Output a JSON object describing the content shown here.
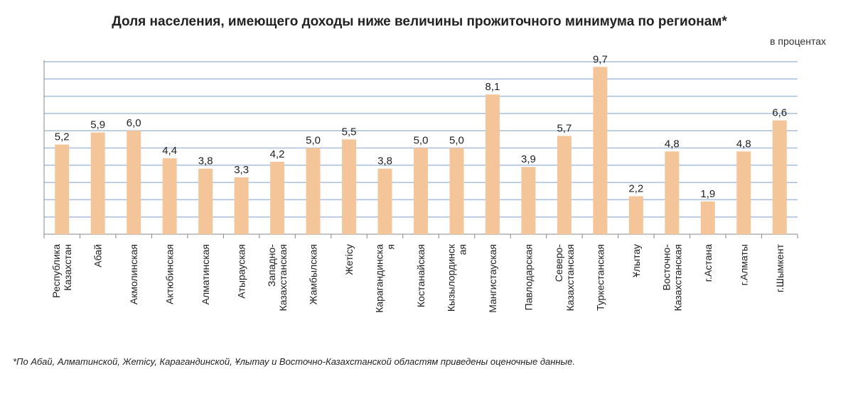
{
  "chart_data": {
    "type": "bar",
    "title": "Доля населения, имеющего доходы ниже величины прожиточного минимума по регионам*",
    "units": "в процентах",
    "categories": [
      [
        "Республика",
        "Казахстан"
      ],
      [
        "Абай"
      ],
      [
        "Акмолинская"
      ],
      [
        "Актюбинская"
      ],
      [
        "Алматинская"
      ],
      [
        "Атырауская"
      ],
      [
        "Западно-",
        "Казахстанская"
      ],
      [
        "Жамбылская"
      ],
      [
        "Жетісу"
      ],
      [
        "Карагандинска",
        "я"
      ],
      [
        "Костанайская"
      ],
      [
        "Кызылординск",
        "ая"
      ],
      [
        "Мангистауская"
      ],
      [
        "Павлодарская"
      ],
      [
        "Северо-",
        "Казахстанская"
      ],
      [
        "Туркестанская"
      ],
      [
        "Ұлытау"
      ],
      [
        "Восточно-",
        "Казахстанская"
      ],
      [
        "г.Астана"
      ],
      [
        "г.Алматы"
      ],
      [
        "г.Шымкент"
      ]
    ],
    "values": [
      5.2,
      5.9,
      6.0,
      4.4,
      3.8,
      3.3,
      4.2,
      5.0,
      5.5,
      3.8,
      5.0,
      5.0,
      8.1,
      3.9,
      5.7,
      9.7,
      2.2,
      4.8,
      1.9,
      4.8,
      6.6
    ],
    "value_labels": [
      "5,2",
      "5,9",
      "6,0",
      "4,4",
      "3,8",
      "3,3",
      "4,2",
      "5,0",
      "5,5",
      "3,8",
      "5,0",
      "5,0",
      "8,1",
      "3,9",
      "5,7",
      "9,7",
      "2,2",
      "4,8",
      "1,9",
      "4,8",
      "6,6"
    ],
    "ylim": [
      0,
      10
    ],
    "grid": true,
    "colors": {
      "bar": "#f5c59a",
      "grid": "#a9bfd9",
      "axis": "#888888"
    }
  },
  "footnote": "*По Абай,  Алматинской, Жетісу, Карагандинской, Ұлытау и Восточно-Казахстанской областям приведены оценочные данные."
}
